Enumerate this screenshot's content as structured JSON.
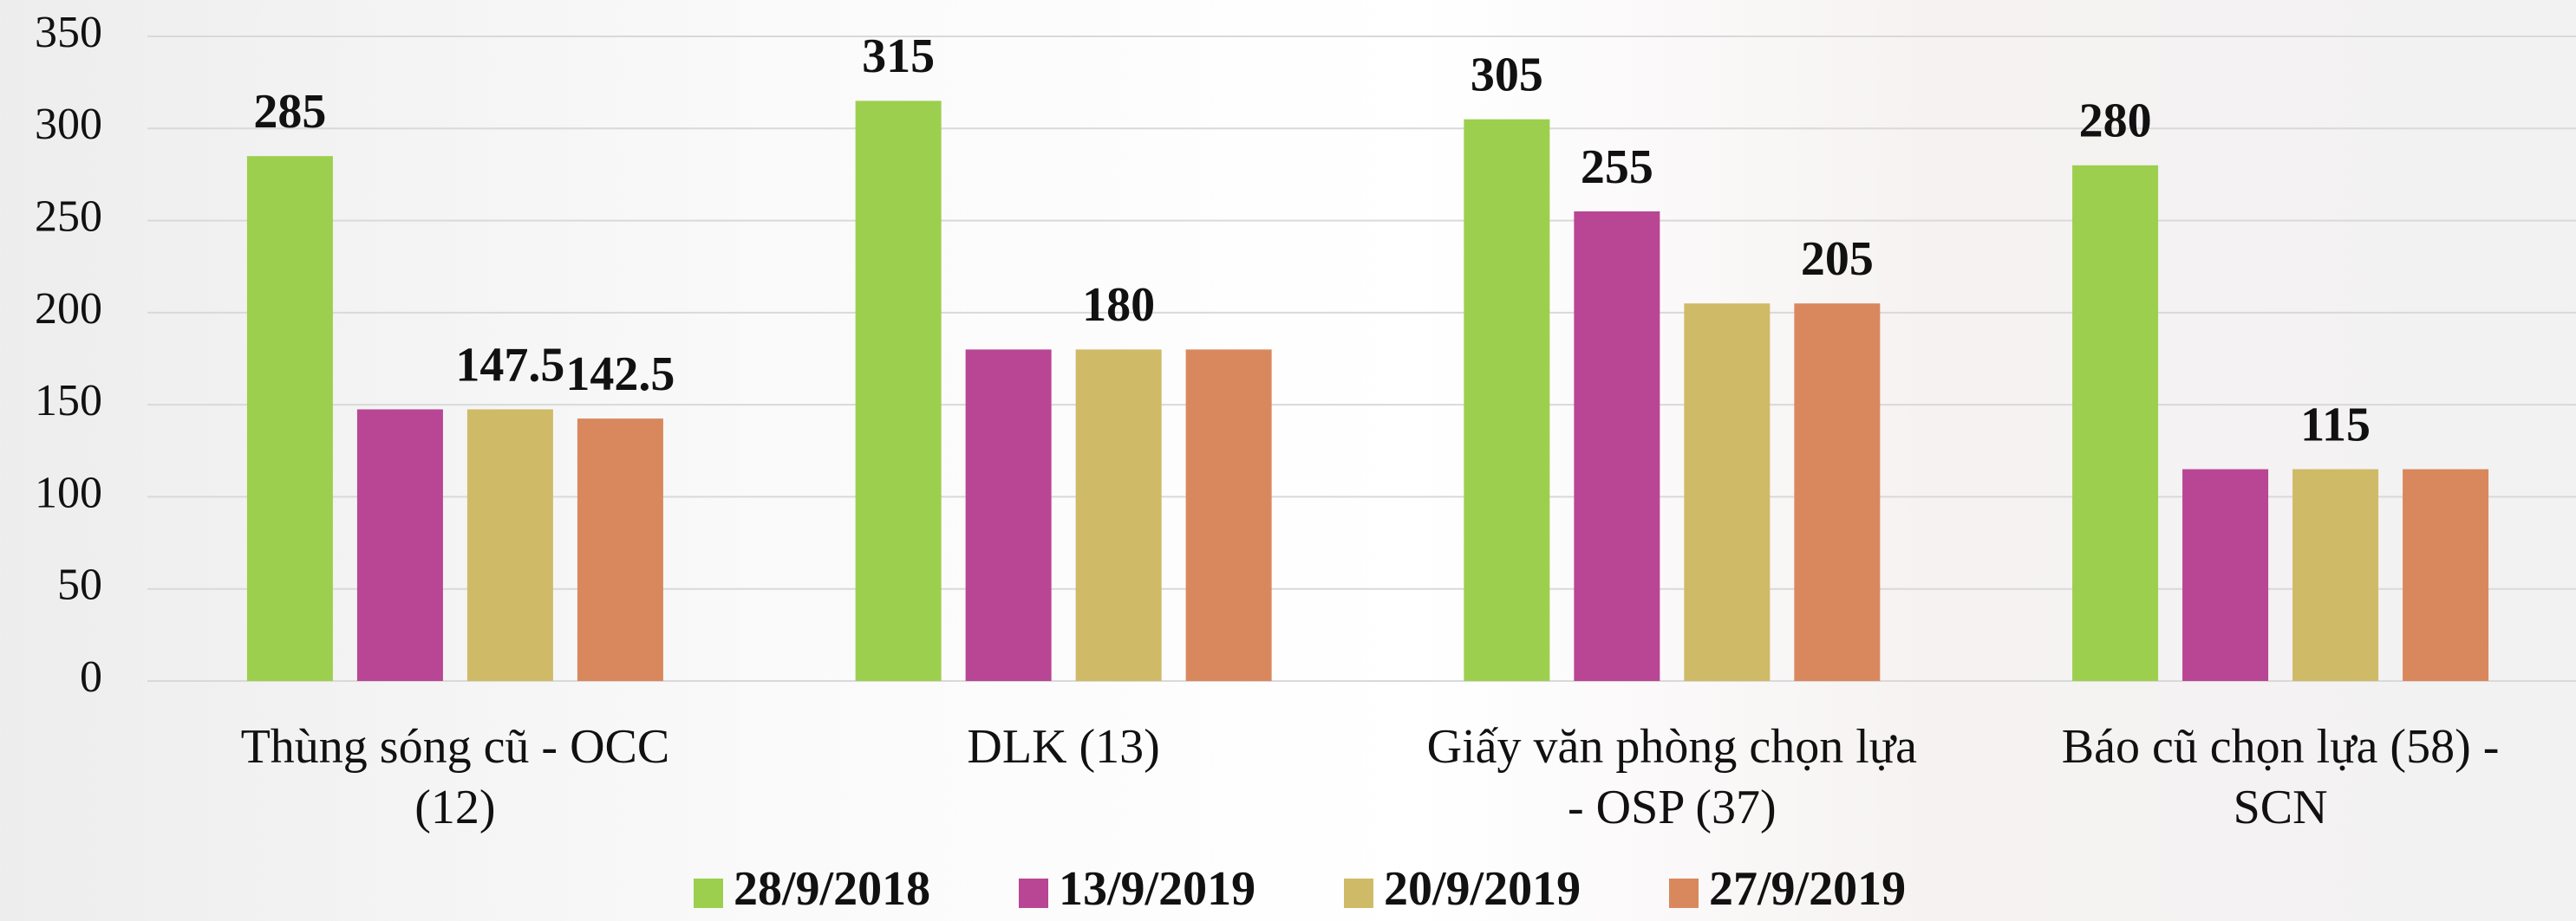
{
  "chart_data": {
    "type": "bar",
    "categories": [
      "Thùng sóng cũ - OCC\n(12)",
      "DLK (13)",
      "Giấy văn phòng chọn lựa\n- OSP (37)",
      "Báo cũ chọn lựa (58) -\nSCN"
    ],
    "series": [
      {
        "name": "28/9/2018",
        "color": "#9ccf4e",
        "values": [
          285,
          315,
          305,
          280
        ],
        "value_labels": [
          "285",
          "315",
          "305",
          "280"
        ]
      },
      {
        "name": "13/9/2019",
        "color": "#b84694",
        "values": [
          147.5,
          180,
          255,
          115
        ],
        "value_labels": [
          null,
          null,
          "255",
          null
        ]
      },
      {
        "name": "20/9/2019",
        "color": "#cfba68",
        "values": [
          147.5,
          180,
          205,
          115
        ],
        "value_labels": [
          "147.5",
          "180",
          null,
          "115"
        ]
      },
      {
        "name": "27/9/2019",
        "color": "#d9885e",
        "values": [
          142.5,
          180,
          205,
          115
        ],
        "value_labels": [
          "142.5",
          null,
          "205",
          null
        ]
      }
    ],
    "ylim": [
      0,
      350
    ],
    "yticks": [
      0,
      50,
      100,
      150,
      200,
      250,
      300,
      350
    ],
    "grid": true,
    "legend": "bottom"
  }
}
